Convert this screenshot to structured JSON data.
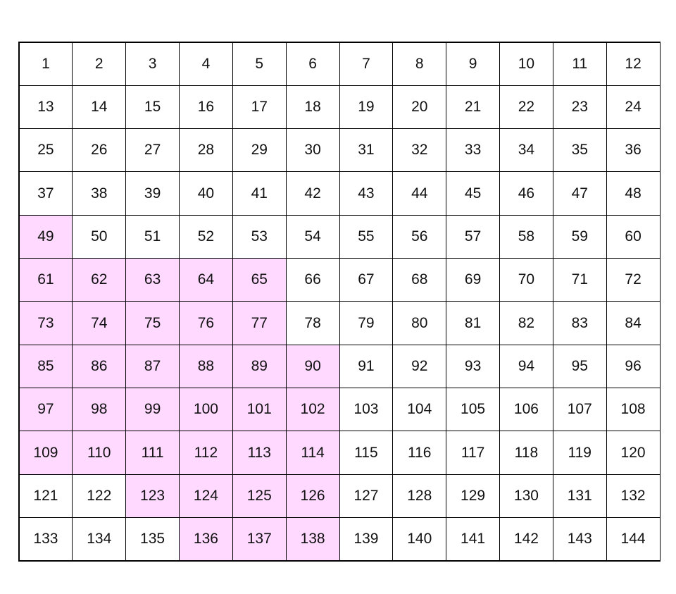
{
  "grid": {
    "rows": 12,
    "columns": 12,
    "start": 1,
    "end": 144,
    "highlight_color": "#ffd9ff",
    "cell_color": "#ffffff",
    "highlighted": [
      49,
      61,
      62,
      63,
      64,
      65,
      73,
      74,
      75,
      76,
      77,
      85,
      86,
      87,
      88,
      89,
      90,
      97,
      98,
      99,
      100,
      101,
      102,
      109,
      110,
      111,
      112,
      113,
      114,
      123,
      124,
      125,
      126,
      136,
      137,
      138
    ]
  }
}
